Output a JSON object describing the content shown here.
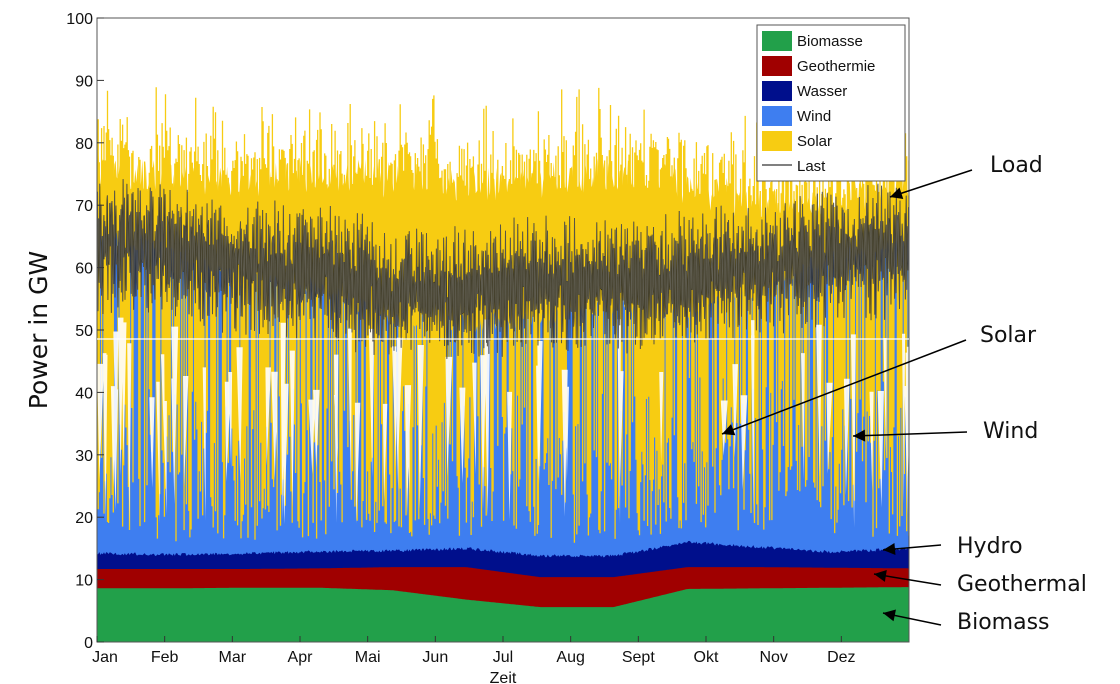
{
  "chart_data": {
    "type": "area",
    "stacked": true,
    "xlabel": "Zeit",
    "ylabel": "Power in GW",
    "ylim": [
      0,
      100
    ],
    "y_ticks": [
      0,
      10,
      20,
      30,
      40,
      50,
      60,
      70,
      80,
      90,
      100
    ],
    "months": [
      "Jan",
      "Feb",
      "Mar",
      "Apr",
      "Mai",
      "Jun",
      "Jul",
      "Aug",
      "Sept",
      "Okt",
      "Nov",
      "Dez"
    ],
    "grid": false,
    "legend_position": "top-right",
    "series": [
      {
        "name": "Biomasse",
        "color": "#22a04a",
        "layer_top_y": [
          8.6,
          8.6,
          8.7,
          8.7,
          8.3,
          6.8,
          5.6,
          5.6,
          8.5,
          8.6,
          8.7,
          8.8
        ],
        "band_thickness": [
          8.6,
          8.6,
          8.7,
          8.7,
          8.3,
          6.8,
          5.6,
          5.6,
          8.5,
          8.6,
          8.7,
          8.8
        ]
      },
      {
        "name": "Geothermie",
        "color": "#a00000",
        "layer_top_y": [
          11.7,
          11.7,
          11.7,
          11.8,
          12.0,
          12.0,
          10.4,
          10.4,
          12.0,
          12.0,
          11.9,
          11.8
        ],
        "band_thickness": [
          3.1,
          3.1,
          3.0,
          3.1,
          3.7,
          5.2,
          4.8,
          4.8,
          3.5,
          3.4,
          3.2,
          3.0
        ]
      },
      {
        "name": "Wasser",
        "color": "#000f8c",
        "layer_top_y": [
          14.2,
          14.0,
          14.2,
          14.5,
          14.6,
          15.0,
          13.8,
          13.8,
          16.0,
          15.2,
          14.4,
          15.0
        ],
        "band_thickness": [
          2.5,
          2.3,
          2.5,
          2.7,
          2.6,
          3.0,
          3.4,
          3.4,
          4.0,
          3.2,
          2.5,
          3.2
        ]
      },
      {
        "name": "Wind",
        "color": "#3e7ef0",
        "layer_top_y": [
          65,
          63,
          58,
          57,
          52,
          51,
          52,
          54,
          53,
          57,
          62,
          64
        ],
        "band_thickness": [
          50.8,
          49.0,
          43.8,
          42.5,
          37.4,
          36.0,
          38.2,
          40.2,
          37.0,
          41.8,
          47.6,
          49.0
        ]
      },
      {
        "name": "Solar",
        "color": "#f7cc12",
        "layer_top_y": [
          76,
          74,
          73,
          75,
          74,
          73,
          74,
          75,
          73,
          70,
          70,
          74
        ],
        "band_thickness": [
          11,
          11,
          15,
          18,
          22,
          22,
          22,
          21,
          20,
          13,
          8,
          10
        ]
      },
      {
        "name": "Last",
        "color": "#000000",
        "kind": "line",
        "values": [
          64,
          62,
          60,
          59,
          56,
          56,
          57,
          57,
          58,
          60,
          62,
          63
        ]
      }
    ],
    "annotations": [
      "Load",
      "Solar",
      "Wind",
      "Hydro",
      "Geothermal",
      "Biomass"
    ]
  }
}
